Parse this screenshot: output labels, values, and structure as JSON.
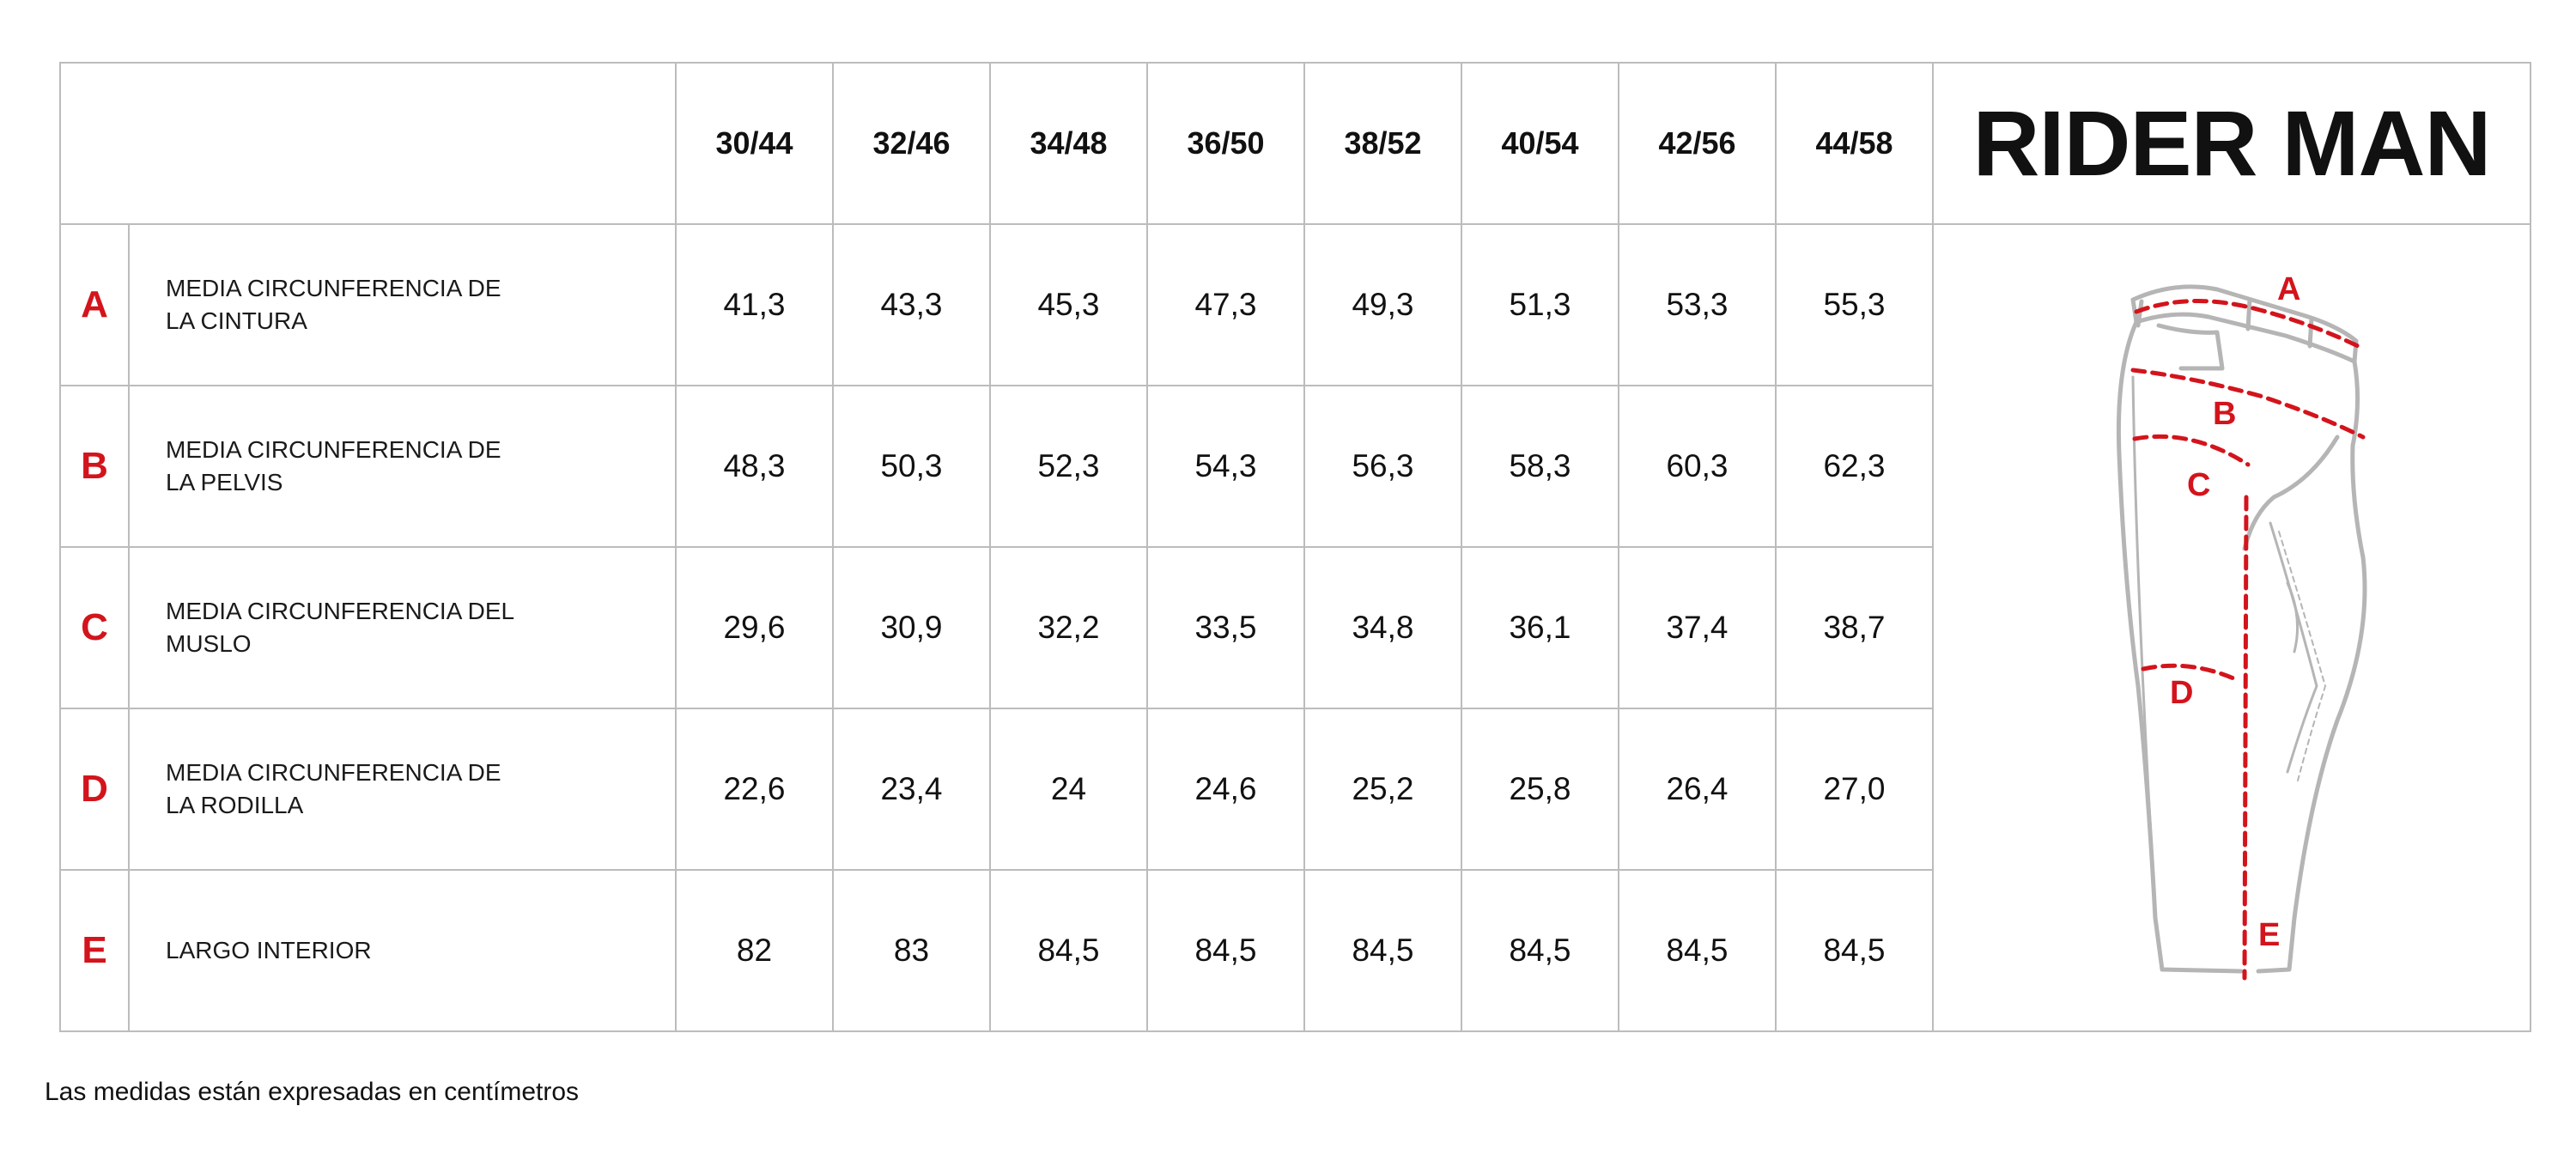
{
  "brand": {
    "title": "RIDER MAN"
  },
  "sizes": [
    "30/44",
    "32/46",
    "34/48",
    "36/50",
    "38/52",
    "40/54",
    "42/56",
    "44/58"
  ],
  "rows": [
    {
      "letter": "A",
      "label": "MEDIA CIRCUNFERENCIA DE LA CINTURA",
      "values": [
        "41,3",
        "43,3",
        "45,3",
        "47,3",
        "49,3",
        "51,3",
        "53,3",
        "55,3"
      ]
    },
    {
      "letter": "B",
      "label": "MEDIA CIRCUNFERENCIA DE LA PELVIS",
      "values": [
        "48,3",
        "50,3",
        "52,3",
        "54,3",
        "56,3",
        "58,3",
        "60,3",
        "62,3"
      ]
    },
    {
      "letter": "C",
      "label": "MEDIA CIRCUNFERENCIA DEL MUSLO",
      "values": [
        "29,6",
        "30,9",
        "32,2",
        "33,5",
        "34,8",
        "36,1",
        "37,4",
        "38,7"
      ]
    },
    {
      "letter": "D",
      "label": "MEDIA CIRCUNFERENCIA DE LA RODILLA",
      "values": [
        "22,6",
        "23,4",
        "24",
        "24,6",
        "25,2",
        "25,8",
        "26,4",
        "27,0"
      ]
    },
    {
      "letter": "E",
      "label": "LARGO INTERIOR",
      "values": [
        "82",
        "83",
        "84,5",
        "84,5",
        "84,5",
        "84,5",
        "84,5",
        "84,5"
      ]
    }
  ],
  "diagram": {
    "markers": [
      "A",
      "B",
      "C",
      "D",
      "E"
    ],
    "accent": "#d3141c",
    "outline": "#b5b5b5"
  },
  "note": "Las medidas están expresadas en centímetros"
}
